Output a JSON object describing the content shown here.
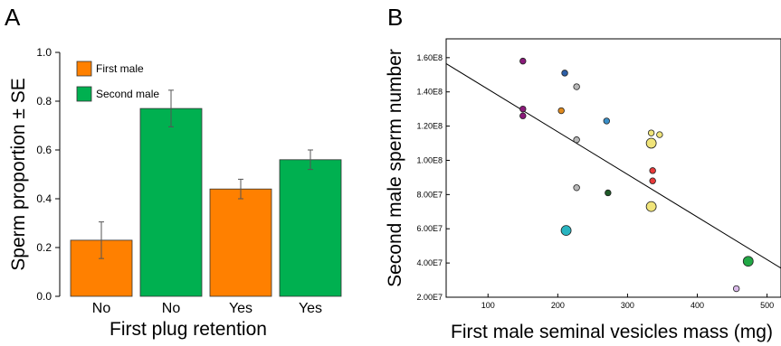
{
  "chart_data": [
    {
      "panel": "A",
      "type": "bar",
      "xlabel": "First plug retention",
      "ylabel": "Sperm proportion ± SE",
      "ylim": [
        0,
        1.0
      ],
      "yticks": [
        "0.0",
        "0.2",
        "0.4",
        "0.6",
        "0.8",
        "1.0"
      ],
      "categories": [
        "No",
        "No",
        "Yes",
        "Yes"
      ],
      "bars": [
        {
          "category": "No",
          "series": "First male",
          "value": 0.23,
          "se": 0.075
        },
        {
          "category": "No",
          "series": "Second male",
          "value": 0.77,
          "se": 0.075
        },
        {
          "category": "Yes",
          "series": "First male",
          "value": 0.44,
          "se": 0.04
        },
        {
          "category": "Yes",
          "series": "Second male",
          "value": 0.56,
          "se": 0.04
        }
      ],
      "legend": [
        {
          "name": "First male",
          "color": "#ff8000"
        },
        {
          "name": "Second male",
          "color": "#00b050"
        }
      ],
      "legend_position": "top-left"
    },
    {
      "panel": "B",
      "type": "scatter",
      "xlabel": "First male seminal vesicles mass (mg)",
      "ylabel": "Second male sperm number",
      "xlim": [
        40,
        520
      ],
      "ylim": [
        20000000,
        171000000
      ],
      "xticks": [
        100,
        200,
        300,
        400,
        500
      ],
      "yticks": [
        {
          "value": 20000000,
          "label": "2.00E7"
        },
        {
          "value": 40000000,
          "label": "4.00E7"
        },
        {
          "value": 60000000,
          "label": "6.00E7"
        },
        {
          "value": 80000000,
          "label": "8.00E7"
        },
        {
          "value": 100000000,
          "label": "1.00E8"
        },
        {
          "value": 120000000,
          "label": "1.20E8"
        },
        {
          "value": 140000000,
          "label": "1.40E8"
        },
        {
          "value": 160000000,
          "label": "1.60E8"
        }
      ],
      "points": [
        {
          "x": 150,
          "y": 158000000,
          "size": "small",
          "color": "#8b1a7a"
        },
        {
          "x": 150,
          "y": 130000000,
          "size": "small",
          "color": "#8b1a7a"
        },
        {
          "x": 150,
          "y": 126000000,
          "size": "small",
          "color": "#8b1a7a"
        },
        {
          "x": 210,
          "y": 151000000,
          "size": "small",
          "color": "#2c5fa8"
        },
        {
          "x": 205,
          "y": 129000000,
          "size": "small",
          "color": "#e08a1e"
        },
        {
          "x": 227,
          "y": 143000000,
          "size": "small",
          "color": "#b8b8b8"
        },
        {
          "x": 227,
          "y": 112000000,
          "size": "small",
          "color": "#b8b8b8"
        },
        {
          "x": 227,
          "y": 84000000,
          "size": "small",
          "color": "#b8b8b8"
        },
        {
          "x": 270,
          "y": 123000000,
          "size": "small",
          "color": "#3a8fc8"
        },
        {
          "x": 272,
          "y": 81000000,
          "size": "small",
          "color": "#1e5a28"
        },
        {
          "x": 212,
          "y": 59000000,
          "size": "large",
          "color": "#28b4c0"
        },
        {
          "x": 334,
          "y": 116000000,
          "size": "small",
          "color": "#f0e47a"
        },
        {
          "x": 346,
          "y": 115000000,
          "size": "small",
          "color": "#f0e47a"
        },
        {
          "x": 334,
          "y": 110000000,
          "size": "large",
          "color": "#f0e47a"
        },
        {
          "x": 334,
          "y": 73000000,
          "size": "large",
          "color": "#f0e47a"
        },
        {
          "x": 336,
          "y": 94000000,
          "size": "small",
          "color": "#e83a3a"
        },
        {
          "x": 336,
          "y": 88000000,
          "size": "small",
          "color": "#e83a3a"
        },
        {
          "x": 456,
          "y": 25000000,
          "size": "small",
          "color": "#d8b8e8"
        },
        {
          "x": 473,
          "y": 41000000,
          "size": "large",
          "color": "#22a845"
        }
      ],
      "regression_line": {
        "x": [
          40,
          520
        ],
        "y": [
          156500000,
          37000000
        ]
      }
    }
  ]
}
